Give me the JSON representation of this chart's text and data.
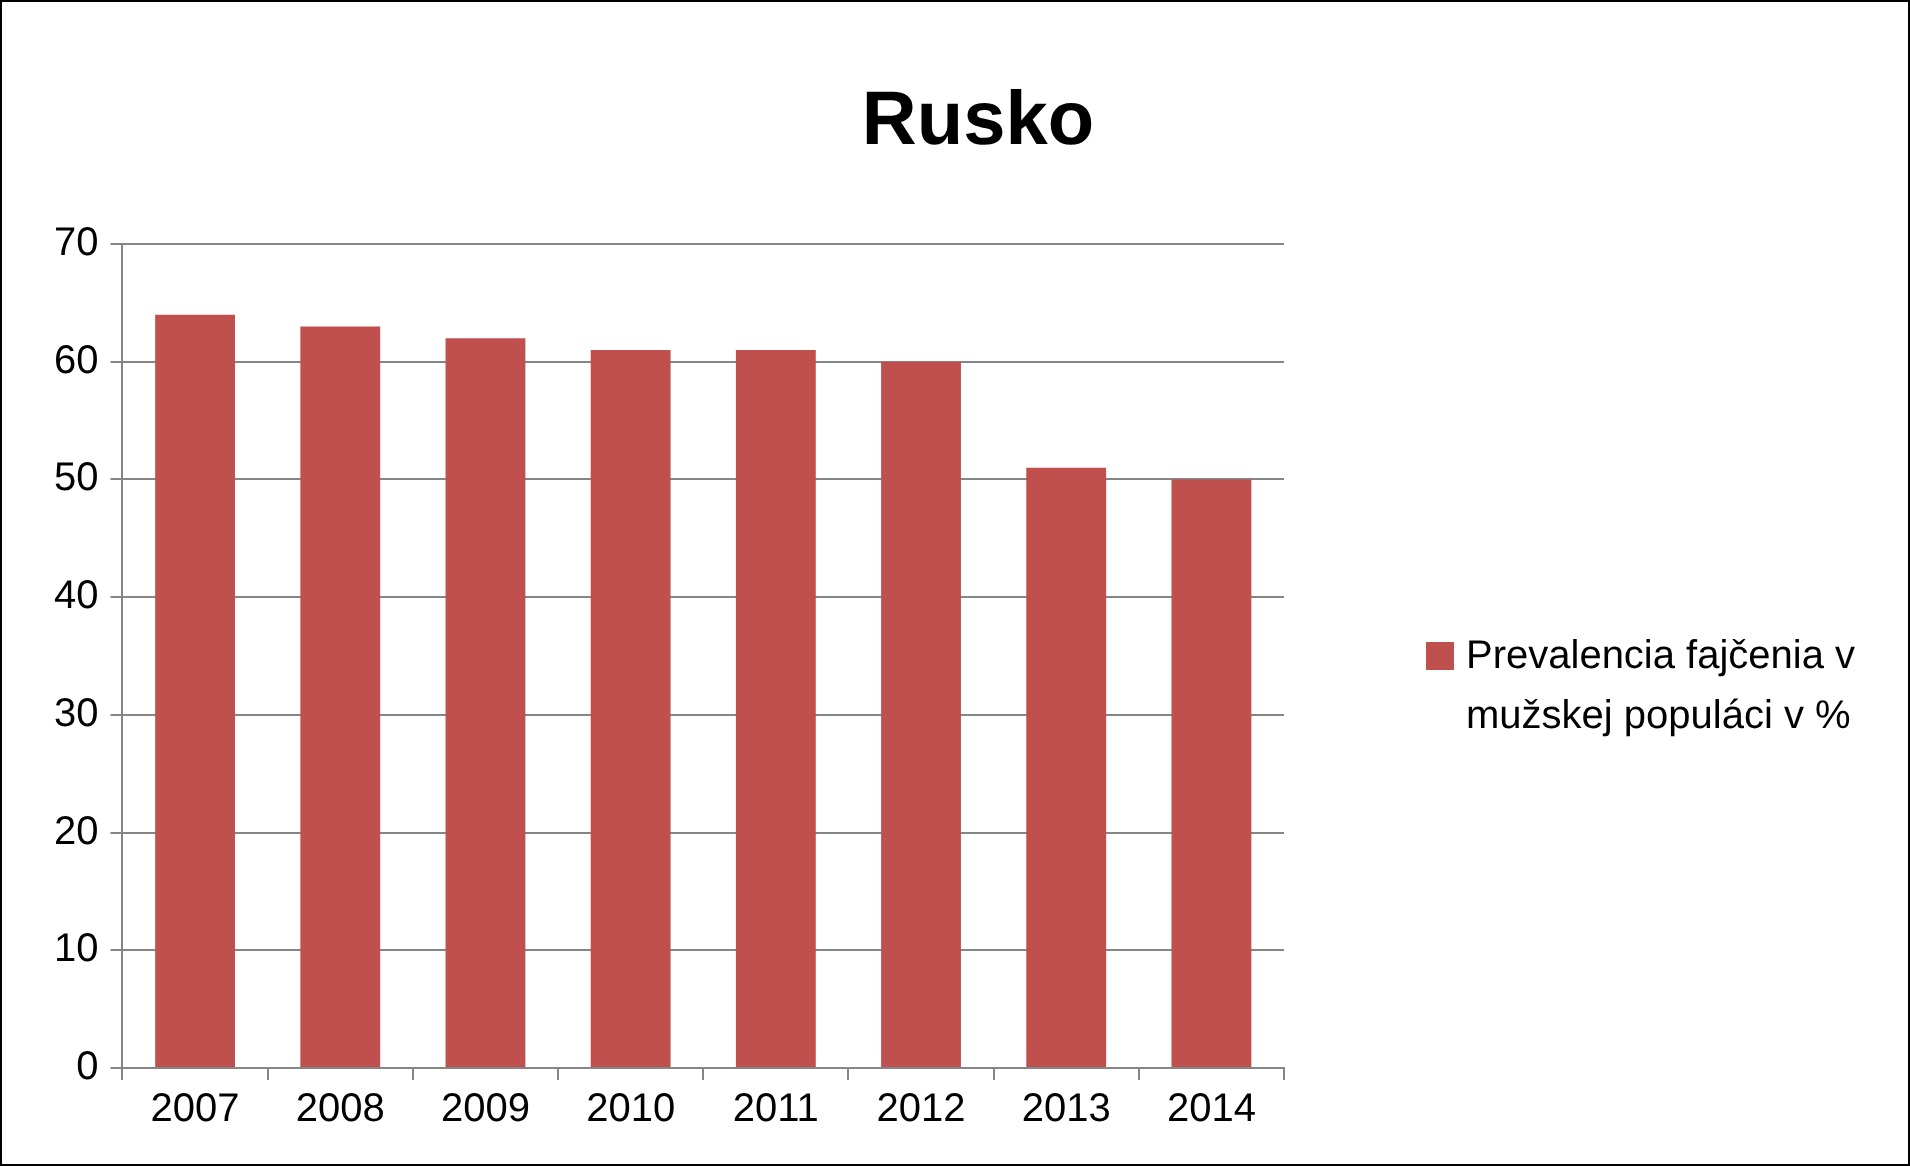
{
  "chart_data": {
    "type": "bar",
    "title": "Rusko",
    "categories": [
      "2007",
      "2008",
      "2009",
      "2010",
      "2011",
      "2012",
      "2013",
      "2014"
    ],
    "series": [
      {
        "name": "Prevalencia fajčenia v mužskej populáci v %",
        "color": "#c0504d",
        "values": [
          64,
          63,
          62,
          61,
          61,
          60,
          51,
          50
        ]
      }
    ],
    "ylim": [
      0,
      70
    ],
    "yticks": [
      0,
      10,
      20,
      30,
      40,
      50,
      60,
      70
    ],
    "grid": "y",
    "legend": "right"
  }
}
